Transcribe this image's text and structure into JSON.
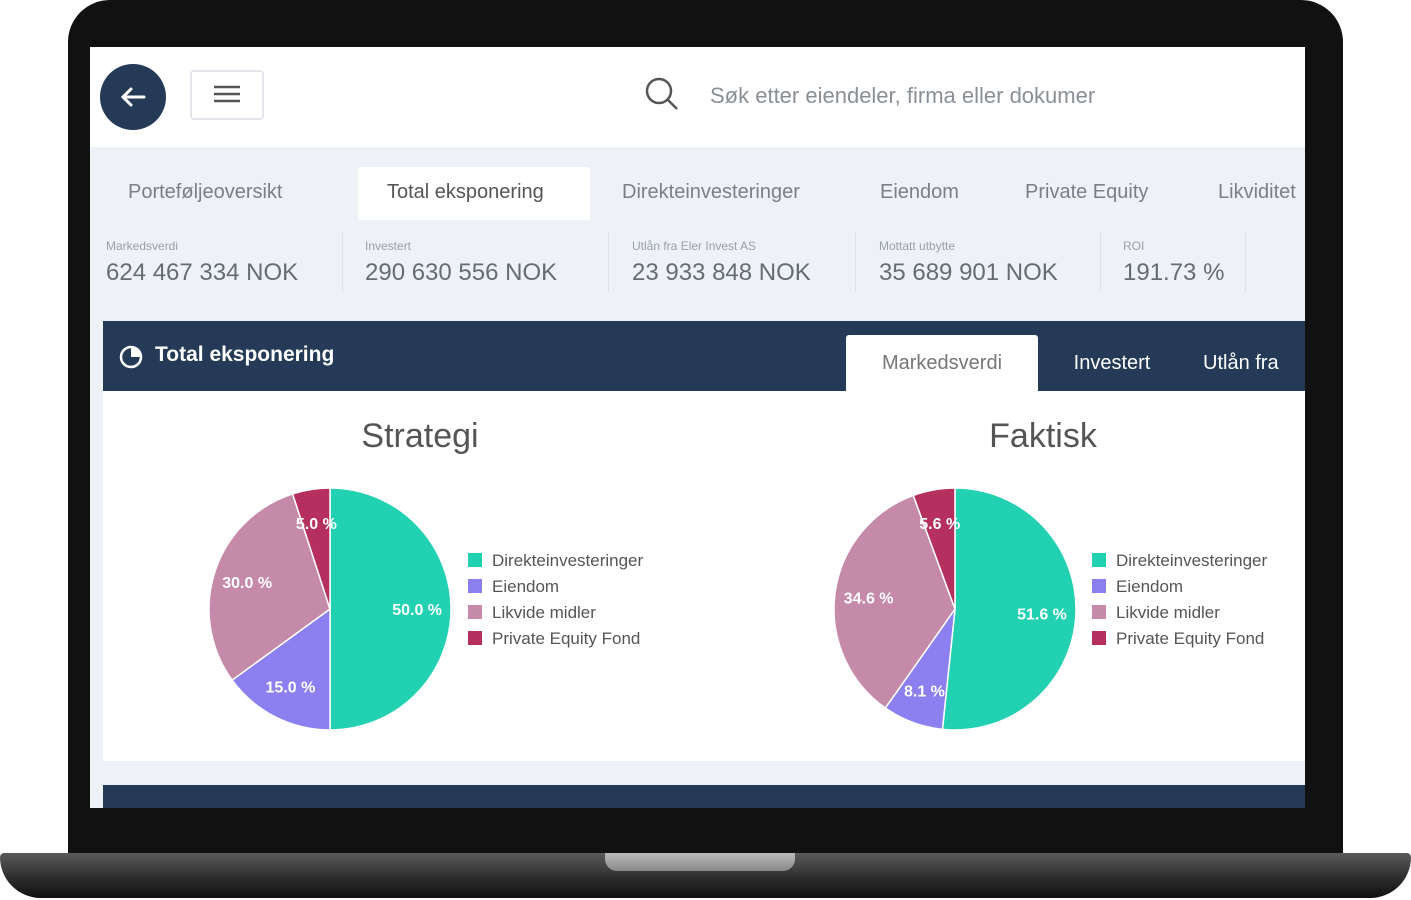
{
  "header": {
    "search_placeholder": "Søk etter eiendeler, firma eller dokumer"
  },
  "tabs": [
    "Porteføljeoversikt",
    "Total eksponering",
    "Direkteinvesteringer",
    "Eiendom",
    "Private Equity",
    "Likviditet"
  ],
  "kpis": [
    {
      "label": "Markedsverdi",
      "value": "624 467 334 NOK"
    },
    {
      "label": "Investert",
      "value": "290 630 556 NOK"
    },
    {
      "label": "Utlån fra Eler Invest AS",
      "value": "23 933 848 NOK"
    },
    {
      "label": "Mottatt utbytte",
      "value": "35 689 901 NOK"
    },
    {
      "label": "ROI",
      "value": "191.73 %"
    }
  ],
  "panel": {
    "title": "Total eksponering",
    "tabs": [
      "Markedsverdi",
      "Investert",
      "Utlån fra"
    ]
  },
  "chart_data": [
    {
      "type": "pie",
      "title": "Strategi",
      "categories": [
        "Direkteinvesteringer",
        "Eiendom",
        "Likvide midler",
        "Private Equity Fond"
      ],
      "values": [
        50.0,
        15.0,
        30.0,
        5.0
      ],
      "value_labels": [
        "50.0 %",
        "15.0 %",
        "30.0 %",
        "5.0 %"
      ],
      "colors": [
        "#22d1b2",
        "#8c7ff0",
        "#c58aa9",
        "#b5305f"
      ]
    },
    {
      "type": "pie",
      "title": "Faktisk",
      "categories": [
        "Direkteinvesteringer",
        "Eiendom",
        "Likvide midler",
        "Private Equity Fond"
      ],
      "values": [
        51.6,
        8.1,
        34.6,
        5.6
      ],
      "value_labels": [
        "51.6 %",
        "8.1 %",
        "34.6 %",
        "5.6 %"
      ],
      "colors": [
        "#22d1b2",
        "#8c7ff0",
        "#c58aa9",
        "#b5305f"
      ]
    }
  ]
}
